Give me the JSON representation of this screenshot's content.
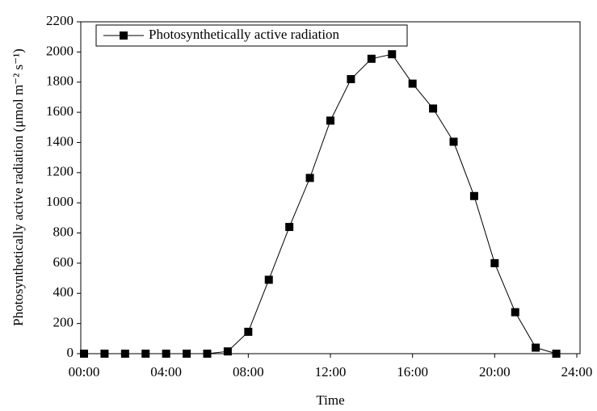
{
  "chart_data": {
    "type": "line",
    "xlabel": "Time",
    "ylabel": "Photosynthetically active radiation (μmol m⁻² s⁻¹)",
    "x": [
      0,
      1,
      2,
      3,
      4,
      5,
      6,
      7,
      8,
      9,
      10,
      11,
      12,
      13,
      14,
      15,
      16,
      17,
      18,
      19,
      20,
      21,
      22,
      23
    ],
    "series": [
      {
        "name": "Photosynthetically active radiation",
        "color": "#000000",
        "values": [
          0,
          0,
          0,
          0,
          0,
          0,
          0,
          15,
          145,
          490,
          840,
          1165,
          1545,
          1820,
          1955,
          1985,
          1790,
          1625,
          1405,
          1045,
          600,
          275,
          40,
          0
        ]
      }
    ],
    "xlim": [
      0,
      24
    ],
    "xticks": [
      {
        "value": 0,
        "label": "00:00"
      },
      {
        "value": 4,
        "label": "04:00"
      },
      {
        "value": 8,
        "label": "08:00"
      },
      {
        "value": 12,
        "label": "12:00"
      },
      {
        "value": 16,
        "label": "16:00"
      },
      {
        "value": 20,
        "label": "20:00"
      },
      {
        "value": 24,
        "label": "24:00"
      }
    ],
    "ylim": [
      0,
      2200
    ],
    "yticks": [
      0,
      200,
      400,
      600,
      800,
      1000,
      1200,
      1400,
      1600,
      1800,
      2000,
      2200
    ],
    "legend": "top-left"
  }
}
